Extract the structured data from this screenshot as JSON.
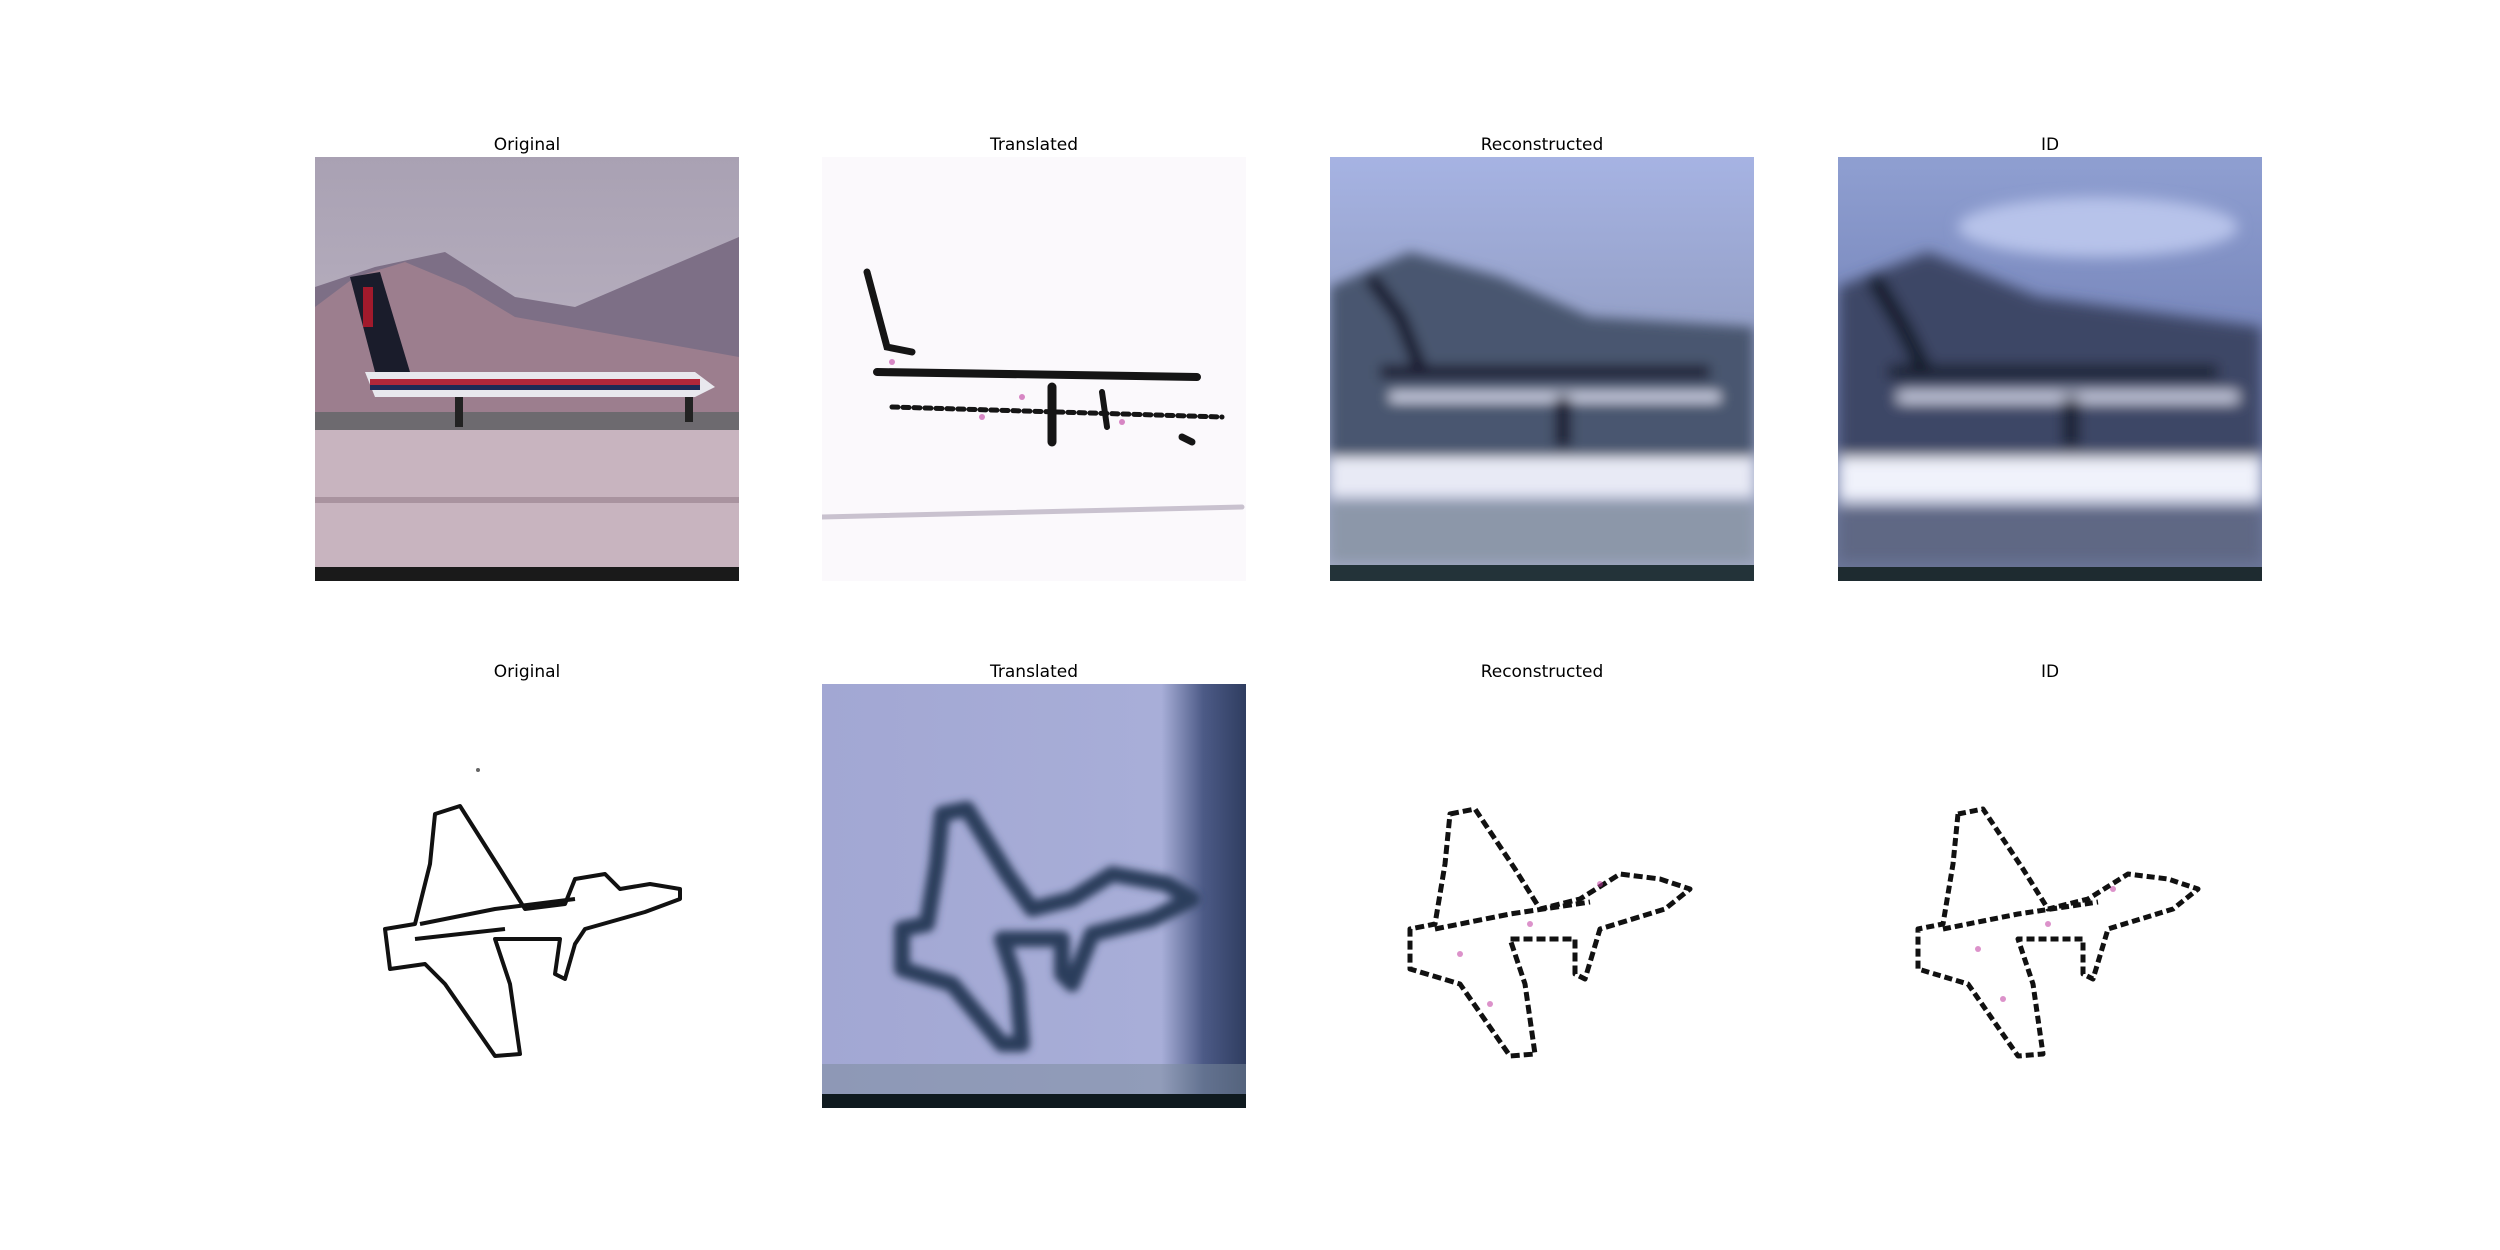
{
  "figure": {
    "rows": [
      {
        "panels": [
          {
            "title": "Original",
            "depicts": "photo-airplane"
          },
          {
            "title": "Translated",
            "depicts": "sketch-airplane"
          },
          {
            "title": "Reconstructed",
            "depicts": "blurred-photo-airplane"
          },
          {
            "title": "ID",
            "depicts": "blurred-photo-airplane"
          }
        ]
      },
      {
        "panels": [
          {
            "title": "Original",
            "depicts": "line-drawing-jet"
          },
          {
            "title": "Translated",
            "depicts": "photo-style-jet"
          },
          {
            "title": "Reconstructed",
            "depicts": "sketch-jet"
          },
          {
            "title": "ID",
            "depicts": "sketch-jet"
          }
        ]
      }
    ]
  }
}
